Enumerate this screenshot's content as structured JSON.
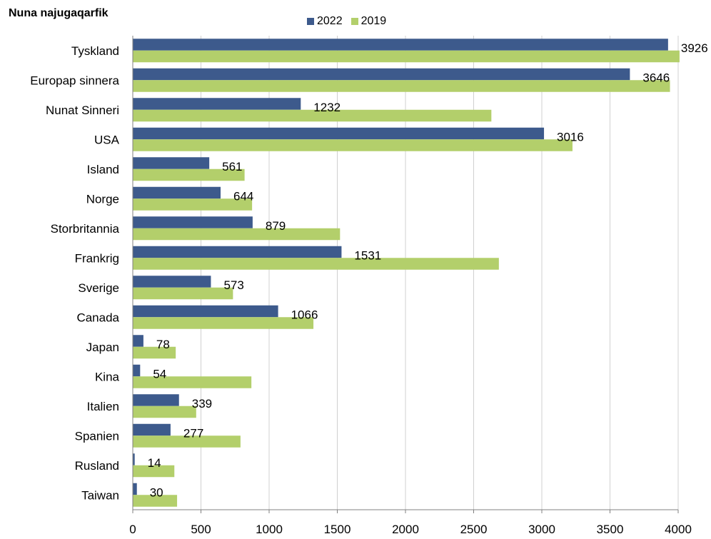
{
  "chart_data": {
    "type": "bar",
    "orientation": "horizontal",
    "title": "Nuna najugaqarfik",
    "categories": [
      "Tyskland",
      "Europap sinnera",
      "Nunat Sinneri",
      "USA",
      "Island",
      "Norge",
      "Storbritannia",
      "Frankrig",
      "Sverige",
      "Canada",
      "Japan",
      "Kina",
      "Italien",
      "Spanien",
      "Rusland",
      "Taiwan"
    ],
    "series": [
      {
        "name": "2022",
        "color": "#3d5a8c",
        "values": [
          3926,
          3646,
          1232,
          3016,
          561,
          644,
          879,
          1531,
          573,
          1066,
          78,
          54,
          339,
          277,
          14,
          30
        ]
      },
      {
        "name": "2019",
        "color": "#b3cf6b",
        "values": [
          4010,
          3940,
          2630,
          3225,
          820,
          875,
          1520,
          2685,
          735,
          1325,
          315,
          870,
          465,
          790,
          305,
          325
        ]
      }
    ],
    "data_labels": [
      "3926",
      "3646",
      "1232",
      "3016",
      "561",
      "644",
      "879",
      "1531",
      "573",
      "1066",
      "78",
      "54",
      "339",
      "277",
      "14",
      "30"
    ],
    "x_ticks": [
      0,
      500,
      1000,
      1500,
      2000,
      2500,
      3000,
      3500,
      4000
    ],
    "xlim": [
      0,
      4000
    ],
    "grid": "vertical",
    "legend_position": "top"
  }
}
